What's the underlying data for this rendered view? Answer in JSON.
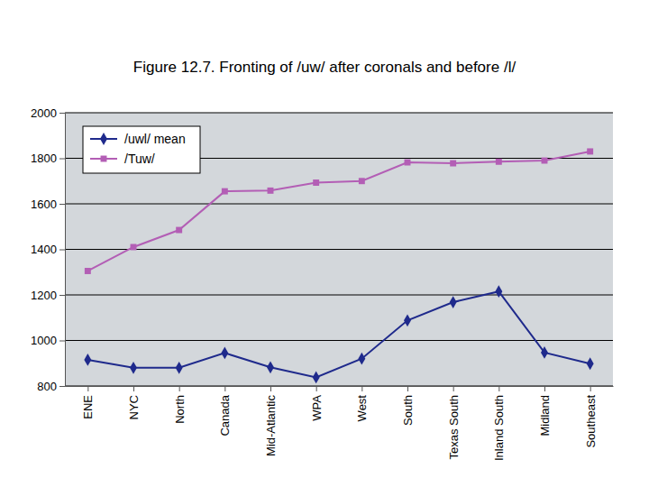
{
  "chart_data": {
    "type": "line",
    "title": "Figure 12.7. Fronting of /uw/ after coronals and before /l/",
    "categories": [
      "ENE",
      "NYC",
      "North",
      "Canada",
      "Mid-Atlantic",
      "WPA",
      "West",
      "South",
      "Texas South",
      "Inland South",
      "Midland",
      "Southeast"
    ],
    "series": [
      {
        "name": "/uwl/ mean",
        "color": "#1f2a8c",
        "marker": "diamond",
        "values": [
          915,
          880,
          880,
          945,
          882,
          838,
          920,
          1088,
          1168,
          1215,
          947,
          898
        ]
      },
      {
        "name": "/Tuw/",
        "color": "#b35eb5",
        "marker": "square",
        "values": [
          1305,
          1410,
          1485,
          1655,
          1658,
          1693,
          1700,
          1782,
          1778,
          1785,
          1790,
          1830
        ]
      }
    ],
    "ylim": [
      800,
      2000
    ],
    "yticks": [
      800,
      1000,
      1200,
      1400,
      1600,
      1800,
      2000
    ],
    "grid": true,
    "legend": "upper left"
  }
}
